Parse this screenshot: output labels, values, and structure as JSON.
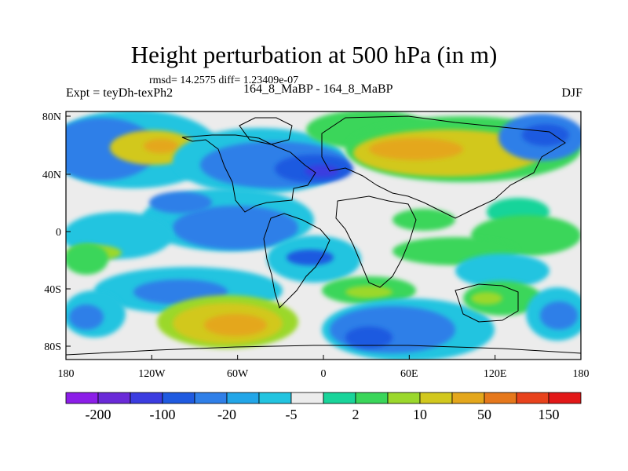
{
  "title": "Height perturbation at 500 hPa (in m)",
  "stats_line": "rmsd= 14.2575 diff= 1.23409e-07",
  "left_label": "Expt = teyDh-texPh2",
  "center_label": "164_8_MaBP - 164_8_MaBP",
  "right_label": "DJF",
  "axes": {
    "y_ticks": [
      "80N",
      "40N",
      "0",
      "40S",
      "80S"
    ],
    "x_ticks": [
      "180",
      "120W",
      "60W",
      "0",
      "60E",
      "120E",
      "180"
    ]
  },
  "colorbar": {
    "colors": [
      "#8c1ee8",
      "#6a2ad8",
      "#3b3ce0",
      "#1f5ae0",
      "#2f7fe8",
      "#22a6e8",
      "#22c4e0",
      "#ececec",
      "#19d49a",
      "#3ad65a",
      "#9bd82c",
      "#d2c81e",
      "#e4a71c",
      "#e6781c",
      "#e8421c",
      "#e21818"
    ],
    "labels": [
      "-200",
      "-100",
      "-20",
      "-5",
      "2",
      "10",
      "50",
      "150"
    ]
  },
  "palette": {
    "neutral": "#ececec",
    "cyan": "#22c4e0",
    "lightblue": "#22a6e8",
    "blue": "#2f7fe8",
    "darkblue": "#1f5ae0",
    "navy": "#3b3ce0",
    "teal": "#19d49a",
    "green": "#3ad65a",
    "lime": "#9bd82c",
    "yellow": "#d2c81e",
    "orange": "#e4a71c",
    "darkorange": "#e6781c"
  }
}
